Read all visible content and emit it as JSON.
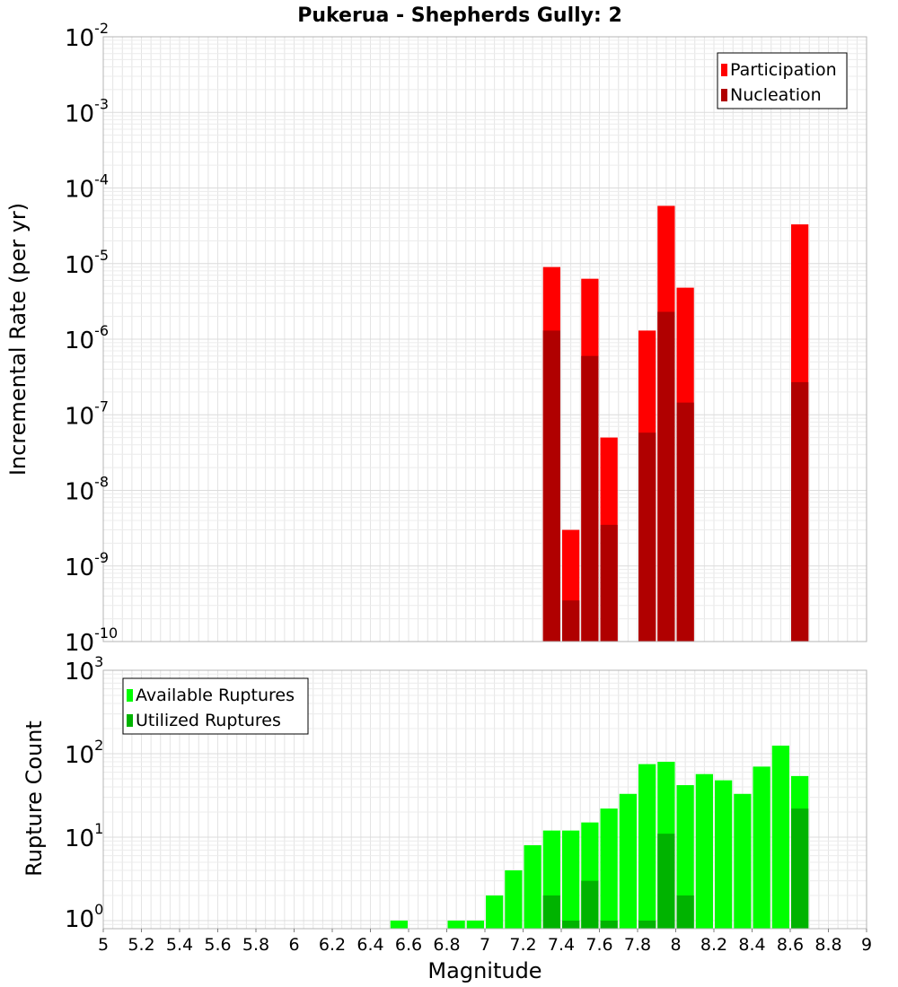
{
  "chart_data": [
    {
      "type": "bar",
      "title": "Pukerua - Shepherds Gully: 2",
      "ylabel": "Incremental Rate (per yr)",
      "xlabel": "",
      "xlim": [
        5,
        9
      ],
      "ylim": [
        1e-10,
        0.01
      ],
      "yscale": "log",
      "ytick_exponents": [
        -2,
        -3,
        -4,
        -5,
        -6,
        -7,
        -8,
        -9,
        -10
      ],
      "bar_width": 0.1,
      "grid": true,
      "legend_position": "top-right",
      "series": [
        {
          "name": "Participation",
          "color": "#ff0000",
          "x": [
            7.35,
            7.45,
            7.55,
            7.65,
            7.85,
            7.95,
            8.05,
            8.65
          ],
          "values": [
            9e-06,
            3e-09,
            6.3e-06,
            5e-08,
            1.3e-06,
            5.8e-05,
            4.8e-06,
            3.3e-05
          ]
        },
        {
          "name": "Nucleation",
          "color": "#b00000",
          "x": [
            7.35,
            7.45,
            7.55,
            7.65,
            7.85,
            7.95,
            8.05,
            8.65
          ],
          "values": [
            1.3e-06,
            3.5e-10,
            6e-07,
            3.5e-09,
            5.8e-08,
            2.3e-06,
            1.45e-07,
            2.7e-07
          ]
        }
      ]
    },
    {
      "type": "bar",
      "title": "",
      "ylabel": "Rupture Count",
      "xlabel": "Magnitude",
      "xlim": [
        5,
        9
      ],
      "ylim": [
        0.8,
        1000
      ],
      "yscale": "log",
      "ytick_exponents": [
        3,
        2,
        1,
        0
      ],
      "xticks": [
        "5",
        "5.2",
        "5.4",
        "5.6",
        "5.8",
        "6",
        "6.2",
        "6.4",
        "6.6",
        "6.8",
        "7",
        "7.2",
        "7.4",
        "7.6",
        "7.8",
        "8",
        "8.2",
        "8.4",
        "8.6",
        "8.8",
        "9"
      ],
      "bar_width": 0.1,
      "grid": true,
      "legend_position": "top-left",
      "series": [
        {
          "name": "Available Ruptures",
          "color": "#00ff00",
          "x": [
            6.55,
            6.85,
            6.95,
            7.05,
            7.15,
            7.25,
            7.35,
            7.45,
            7.55,
            7.65,
            7.75,
            7.85,
            7.95,
            8.05,
            8.15,
            8.25,
            8.35,
            8.45,
            8.55,
            8.65
          ],
          "values": [
            1,
            1,
            1,
            2,
            4,
            8,
            12,
            12,
            15,
            22,
            33,
            75,
            80,
            42,
            57,
            48,
            33,
            70,
            125,
            54
          ]
        },
        {
          "name": "Utilized Ruptures",
          "color": "#00b300",
          "x": [
            7.35,
            7.45,
            7.55,
            7.65,
            7.85,
            7.95,
            8.05,
            8.65
          ],
          "values": [
            2,
            1,
            3,
            1,
            1,
            11,
            2,
            22
          ]
        }
      ]
    }
  ]
}
